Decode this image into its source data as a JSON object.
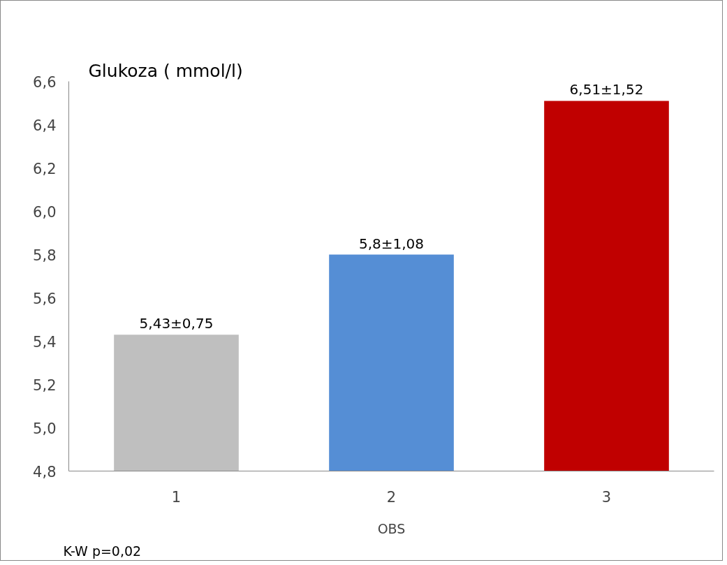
{
  "chart_data": {
    "type": "bar",
    "ylabel": "Glukoza ( mmol/l)",
    "xlabel": "OBS",
    "categories": [
      "1",
      "2",
      "3"
    ],
    "values": [
      5.43,
      5.8,
      6.51
    ],
    "colors": [
      "#bfbfbf",
      "#558ed5",
      "#c00000"
    ],
    "value_labels": [
      "5,43±0,75",
      "5,8±1,08",
      "6,51±1,52"
    ],
    "ylim": [
      4.8,
      6.6
    ],
    "yticks": [
      {
        "value": 4.8,
        "label": "4,8"
      },
      {
        "value": 5.0,
        "label": "5,0"
      },
      {
        "value": 5.2,
        "label": "5,2"
      },
      {
        "value": 5.4,
        "label": "5,4"
      },
      {
        "value": 5.6,
        "label": "5,6"
      },
      {
        "value": 5.8,
        "label": "5,8"
      },
      {
        "value": 6.0,
        "label": "6,0"
      },
      {
        "value": 6.2,
        "label": "6,2"
      },
      {
        "value": 6.4,
        "label": "6,4"
      },
      {
        "value": 6.6,
        "label": "6,6"
      }
    ],
    "annotations": [
      "K-W  p=0,02"
    ],
    "grid": false
  }
}
